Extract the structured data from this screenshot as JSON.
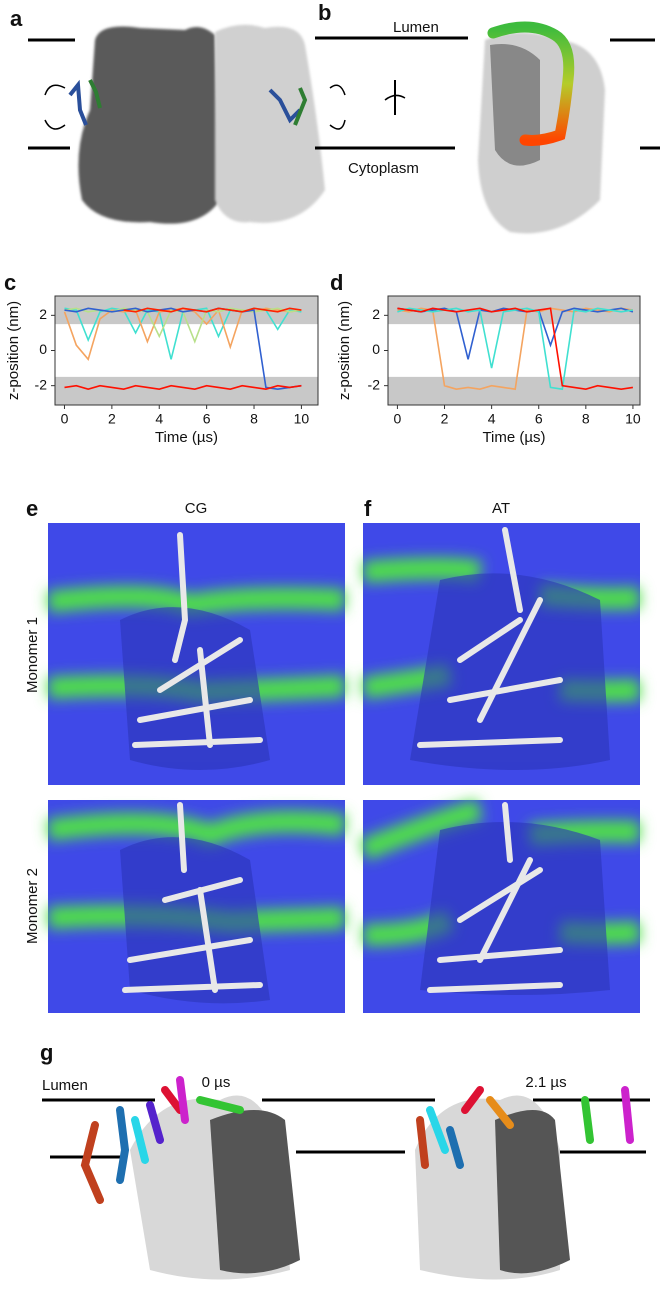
{
  "panel_labels": [
    "a",
    "b",
    "c",
    "d",
    "e",
    "f",
    "g"
  ],
  "panel_b": {
    "top": "Lumen",
    "bottom": "Cytoplasm"
  },
  "panel_ef": {
    "columns": [
      "CG",
      "AT"
    ],
    "rows": [
      "Monomer 1",
      "Monomer 2"
    ]
  },
  "panel_g": {
    "times": [
      "0 µs",
      "2.1 µs"
    ],
    "top": "Lumen"
  },
  "chart_data": [
    {
      "type": "line",
      "xlabel": "Time (µs)",
      "ylabel": "z-position (nm)",
      "xlim": [
        -0.4,
        10.7
      ],
      "ylim": [
        -3.1,
        3.1
      ],
      "xticks": [
        0,
        2,
        4,
        6,
        8,
        10
      ],
      "yticks": [
        -2,
        0,
        2
      ],
      "shaded_bands": [
        [
          1.5,
          3.1
        ],
        [
          -3.1,
          -1.5
        ]
      ],
      "band_color": "#c8c8c8",
      "x": [
        0,
        0.5,
        1,
        1.5,
        2,
        2.5,
        3,
        3.5,
        4,
        4.5,
        5,
        5.5,
        6,
        6.5,
        7,
        7.5,
        8,
        8.5,
        9,
        9.5,
        10
      ],
      "series": [
        {
          "color": "#40e0d0",
          "values": [
            2.4,
            2.3,
            0.6,
            2.2,
            2.4,
            2.3,
            1.0,
            2.3,
            2.2,
            -0.5,
            2.2,
            2.3,
            2.4,
            0.8,
            2.3,
            2.2,
            2.4,
            2.3,
            1.2,
            2.3,
            2.2
          ]
        },
        {
          "color": "#f4a460",
          "values": [
            2.2,
            0.3,
            -0.5,
            1.8,
            2.3,
            2.2,
            2.3,
            0.5,
            2.2,
            2.3,
            2.4,
            2.2,
            1.5,
            2.3,
            0.2,
            2.3,
            2.2,
            2.4,
            2.3,
            2.2,
            2.3
          ]
        },
        {
          "color": "#b8e08a",
          "values": [
            2.3,
            2.4,
            2.2,
            2.3,
            2.2,
            2.4,
            2.3,
            2.2,
            0.8,
            2.3,
            2.2,
            0.5,
            2.3,
            2.2,
            2.4,
            2.3,
            2.2,
            2.3,
            2.4,
            2.2,
            2.3
          ]
        },
        {
          "color": "#3060d0",
          "values": [
            2.3,
            2.2,
            2.4,
            2.3,
            2.2,
            2.3,
            2.4,
            2.2,
            2.3,
            2.4,
            2.2,
            2.3,
            2.2,
            2.4,
            2.3,
            2.2,
            2.3,
            -2.1,
            -2.2,
            -2.1,
            -2.0
          ]
        },
        {
          "color": "#ff2200",
          "values": [
            null,
            null,
            null,
            null,
            null,
            2.3,
            2.2,
            2.4,
            2.3,
            2.2,
            2.4,
            2.3,
            2.2,
            2.4,
            2.3,
            2.2,
            2.4,
            2.3,
            2.2,
            2.4,
            2.3
          ]
        },
        {
          "color": "#ff1000",
          "values": [
            -2.1,
            -2.0,
            -2.2,
            -2.0,
            -2.1,
            -2.2,
            -2.0,
            -2.1,
            -2.2,
            -2.0,
            -2.1,
            -2.2,
            -2.0,
            -2.1,
            -2.2,
            -2.0,
            -2.1,
            -2.2,
            -2.0,
            -2.1,
            -2.0
          ]
        }
      ]
    },
    {
      "type": "line",
      "xlabel": "Time (µs)",
      "ylabel": "z-position (nm)",
      "xlim": [
        -0.4,
        10.3
      ],
      "ylim": [
        -3.1,
        3.1
      ],
      "xticks": [
        0,
        2,
        4,
        6,
        8,
        10
      ],
      "yticks": [
        -2,
        0,
        2
      ],
      "shaded_bands": [
        [
          1.5,
          3.1
        ],
        [
          -3.1,
          -1.5
        ]
      ],
      "band_color": "#c8c8c8",
      "x": [
        0,
        0.5,
        1,
        1.5,
        2,
        2.5,
        3,
        3.5,
        4,
        4.5,
        5,
        5.5,
        6,
        6.5,
        7,
        7.5,
        8,
        8.5,
        9,
        9.5,
        10
      ],
      "series": [
        {
          "color": "#f4a460",
          "values": [
            2.3,
            2.2,
            2.4,
            2.3,
            -2.0,
            -2.2,
            -2.1,
            -2.2,
            -2.0,
            -2.1,
            -2.2,
            2.3,
            2.2,
            2.4,
            2.3,
            2.2,
            2.4,
            2.3,
            2.2,
            2.4,
            2.3
          ]
        },
        {
          "color": "#3060d0",
          "values": [
            2.4,
            2.3,
            2.2,
            2.3,
            2.4,
            2.2,
            -0.5,
            2.3,
            2.2,
            2.4,
            2.3,
            2.2,
            2.3,
            0.3,
            2.2,
            2.4,
            2.3,
            2.2,
            2.3,
            2.4,
            2.2
          ]
        },
        {
          "color": "#40e0d0",
          "values": [
            2.2,
            2.4,
            2.3,
            2.2,
            2.3,
            2.4,
            2.2,
            2.3,
            -1.0,
            2.2,
            2.3,
            2.4,
            2.2,
            -2.1,
            -2.2,
            2.3,
            2.2,
            2.4,
            2.3,
            2.2,
            2.3
          ]
        },
        {
          "color": "#ff1000",
          "values": [
            2.4,
            2.3,
            2.2,
            2.4,
            2.3,
            2.2,
            2.3,
            2.4,
            2.2,
            2.3,
            2.4,
            2.2,
            2.3,
            2.4,
            -2.0,
            -2.1,
            -2.2,
            -2.0,
            -2.1,
            -2.2,
            -2.1
          ]
        }
      ]
    }
  ]
}
